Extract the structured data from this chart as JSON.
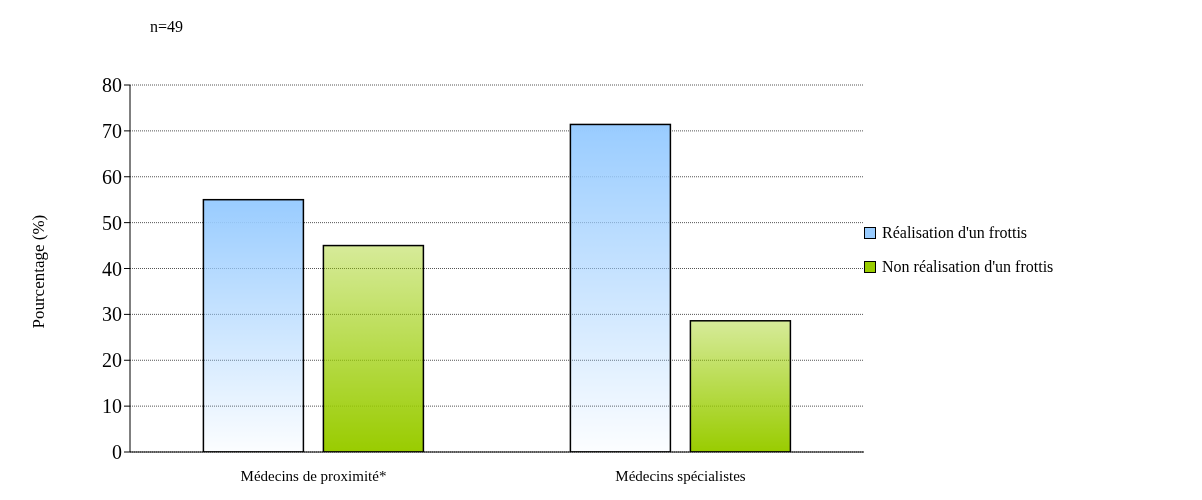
{
  "chart_data": {
    "type": "bar",
    "ylabel": "Pourcentage (%)",
    "annotations": [
      "n=49"
    ],
    "categories": [
      "Médecins de proximité*",
      "Médecins spécialistes"
    ],
    "series": [
      {
        "name": "Réalisation d'un frottis",
        "color": "#99ccff",
        "values": [
          55,
          71.4
        ]
      },
      {
        "name": "Non réalisation d'un frottis",
        "color": "#99cc00",
        "values": [
          45,
          28.6
        ]
      }
    ],
    "ylim": [
      0,
      80
    ],
    "yticks": [
      0,
      10,
      20,
      30,
      40,
      50,
      60,
      70,
      80
    ],
    "grid": "y",
    "legend": "right"
  }
}
